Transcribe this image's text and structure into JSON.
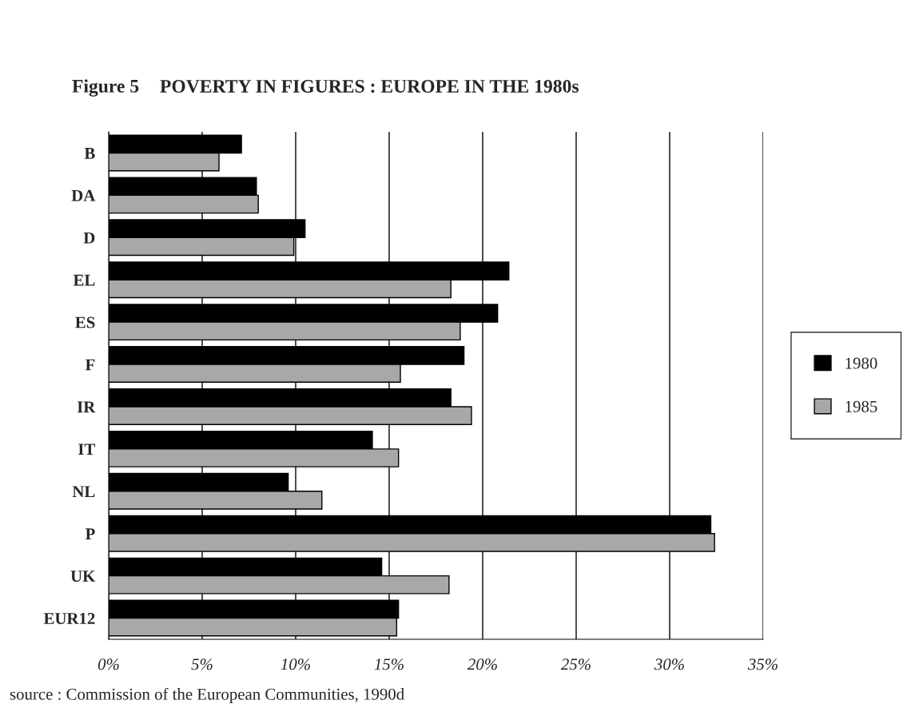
{
  "chart_data": {
    "type": "bar",
    "orientation": "horizontal",
    "title": "POVERTY IN FIGURES : EUROPE IN THE 1980s",
    "categories": [
      "B",
      "DA",
      "D",
      "EL",
      "ES",
      "F",
      "IR",
      "IT",
      "NL",
      "P",
      "UK",
      "EUR12"
    ],
    "series": [
      {
        "name": "1980",
        "color": "#000000",
        "values": [
          7.1,
          7.9,
          10.5,
          21.4,
          20.8,
          19.0,
          18.3,
          14.1,
          9.6,
          32.2,
          14.6,
          15.5
        ]
      },
      {
        "name": "1985",
        "color": "#a8a8a8",
        "values": [
          5.9,
          8.0,
          9.9,
          18.3,
          18.8,
          15.6,
          19.4,
          15.5,
          11.4,
          32.4,
          18.2,
          15.4
        ]
      }
    ],
    "xlim": [
      0,
      35
    ],
    "xticks": [
      {
        "value": 0,
        "label": "0%"
      },
      {
        "value": 5,
        "label": "5%"
      },
      {
        "value": 10,
        "label": "10%"
      },
      {
        "value": 15,
        "label": "15%"
      },
      {
        "value": 20,
        "label": "20%"
      },
      {
        "value": 25,
        "label": "25%"
      },
      {
        "value": 30,
        "label": "30%"
      },
      {
        "value": 35,
        "label": "35%"
      }
    ],
    "grid": "x",
    "legend": "right",
    "annotations": [
      "Figure 5",
      "source : Commission of the European Communities, 1990d"
    ]
  }
}
